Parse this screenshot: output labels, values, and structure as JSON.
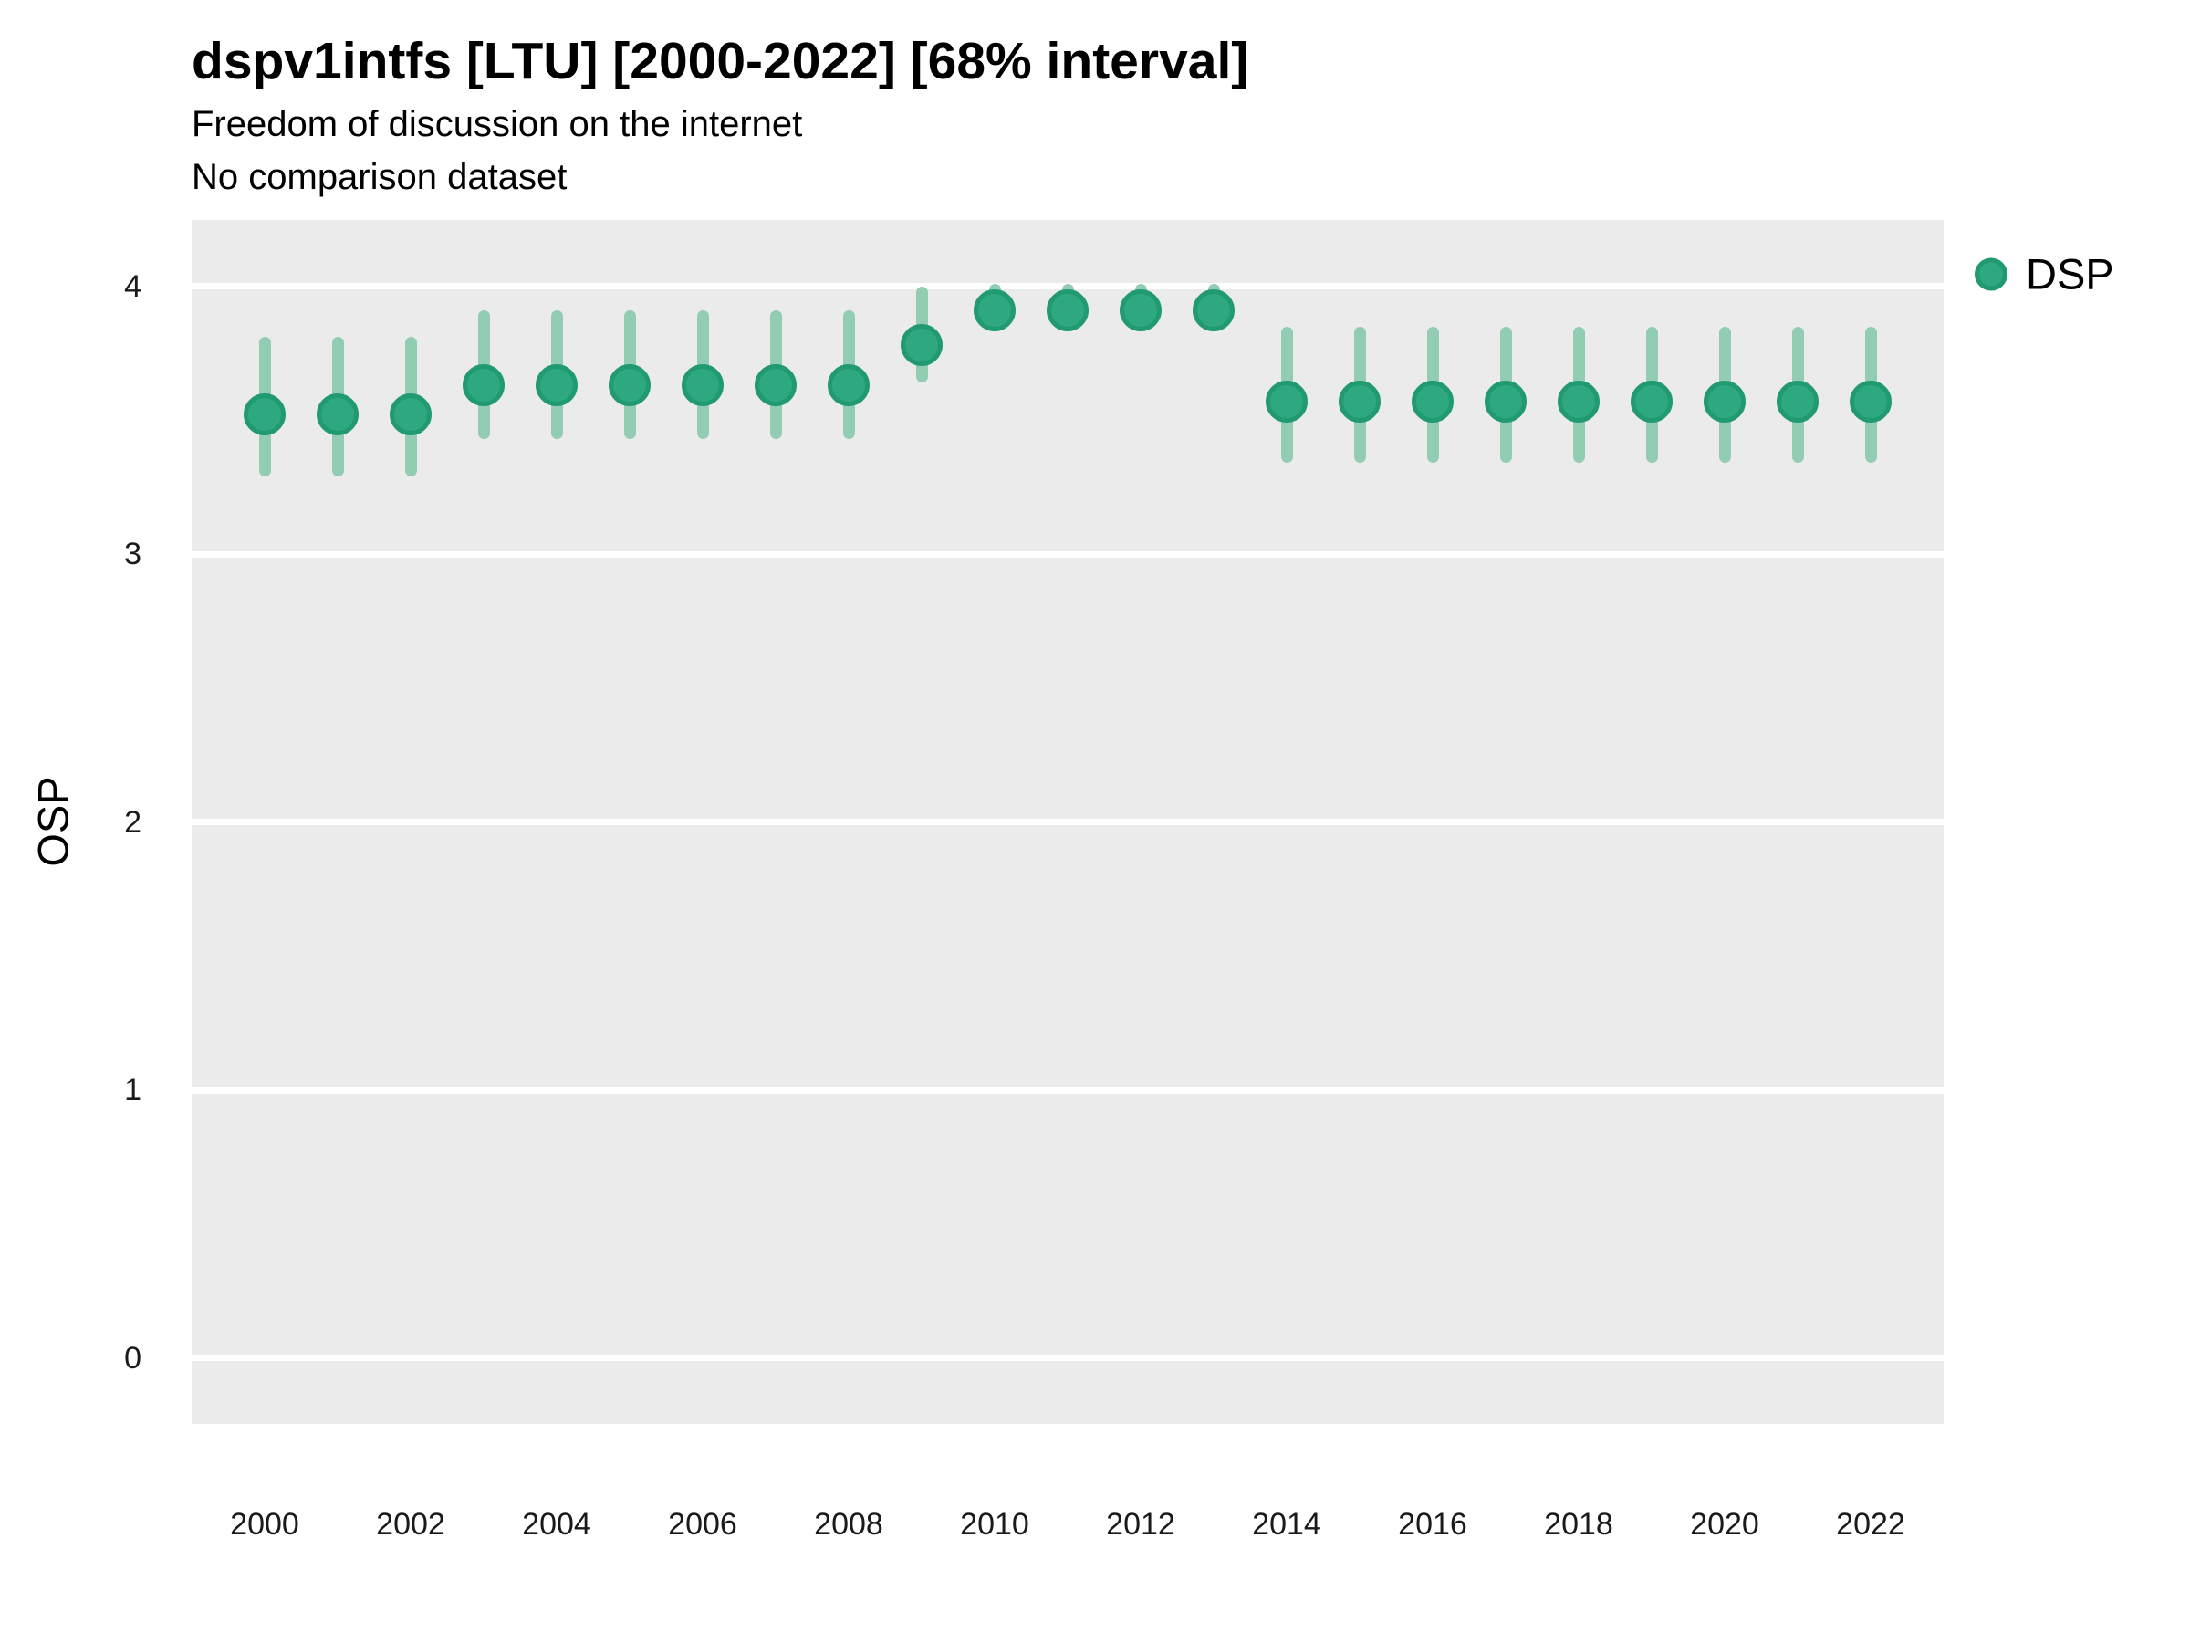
{
  "colors": {
    "panel_bg": "#ebebeb",
    "grid": "#ffffff",
    "point_fill": "#2ea881",
    "point_stroke": "#219a72",
    "interval": "#91ccb3",
    "text": "#000000"
  },
  "legend": {
    "label": "DSP"
  },
  "chart_data": {
    "type": "pointrange",
    "title": "dspv1intfs [LTU] [2000-2022] [68% interval]",
    "subtitle": "Freedom of discussion on the internet",
    "note": "No comparison dataset",
    "indicator": "dspv1intfs",
    "country": "LTU",
    "interval_level": "68%",
    "xlabel": "",
    "ylabel": "OSP",
    "ylim": [
      -0.25,
      4.25
    ],
    "xlim": [
      1999,
      2023
    ],
    "y_ticks": [
      0,
      1,
      2,
      3,
      4
    ],
    "x_ticks": [
      2000,
      2002,
      2004,
      2006,
      2008,
      2010,
      2012,
      2014,
      2016,
      2018,
      2020,
      2022
    ],
    "grid": "horizontal-major-only",
    "legend_position": "right-top",
    "series": [
      {
        "name": "DSP",
        "color": "#2ea881",
        "interval_color": "#91ccb3",
        "points": [
          {
            "year": 2000,
            "value": 3.52,
            "lo": 3.29,
            "hi": 3.81
          },
          {
            "year": 2001,
            "value": 3.52,
            "lo": 3.29,
            "hi": 3.81
          },
          {
            "year": 2002,
            "value": 3.52,
            "lo": 3.29,
            "hi": 3.81
          },
          {
            "year": 2003,
            "value": 3.63,
            "lo": 3.43,
            "hi": 3.91
          },
          {
            "year": 2004,
            "value": 3.63,
            "lo": 3.43,
            "hi": 3.91
          },
          {
            "year": 2005,
            "value": 3.63,
            "lo": 3.43,
            "hi": 3.91
          },
          {
            "year": 2006,
            "value": 3.63,
            "lo": 3.43,
            "hi": 3.91
          },
          {
            "year": 2007,
            "value": 3.63,
            "lo": 3.43,
            "hi": 3.91
          },
          {
            "year": 2008,
            "value": 3.63,
            "lo": 3.43,
            "hi": 3.91
          },
          {
            "year": 2009,
            "value": 3.78,
            "lo": 3.64,
            "hi": 4.0
          },
          {
            "year": 2010,
            "value": 3.91,
            "lo": 3.83,
            "hi": 4.01
          },
          {
            "year": 2011,
            "value": 3.91,
            "lo": 3.83,
            "hi": 4.01
          },
          {
            "year": 2012,
            "value": 3.91,
            "lo": 3.83,
            "hi": 4.01
          },
          {
            "year": 2013,
            "value": 3.91,
            "lo": 3.83,
            "hi": 4.01
          },
          {
            "year": 2014,
            "value": 3.57,
            "lo": 3.34,
            "hi": 3.85
          },
          {
            "year": 2015,
            "value": 3.57,
            "lo": 3.34,
            "hi": 3.85
          },
          {
            "year": 2016,
            "value": 3.57,
            "lo": 3.34,
            "hi": 3.85
          },
          {
            "year": 2017,
            "value": 3.57,
            "lo": 3.34,
            "hi": 3.85
          },
          {
            "year": 2018,
            "value": 3.57,
            "lo": 3.34,
            "hi": 3.85
          },
          {
            "year": 2019,
            "value": 3.57,
            "lo": 3.34,
            "hi": 3.85
          },
          {
            "year": 2020,
            "value": 3.57,
            "lo": 3.34,
            "hi": 3.85
          },
          {
            "year": 2021,
            "value": 3.57,
            "lo": 3.34,
            "hi": 3.85
          },
          {
            "year": 2022,
            "value": 3.57,
            "lo": 3.34,
            "hi": 3.85
          }
        ]
      }
    ]
  }
}
